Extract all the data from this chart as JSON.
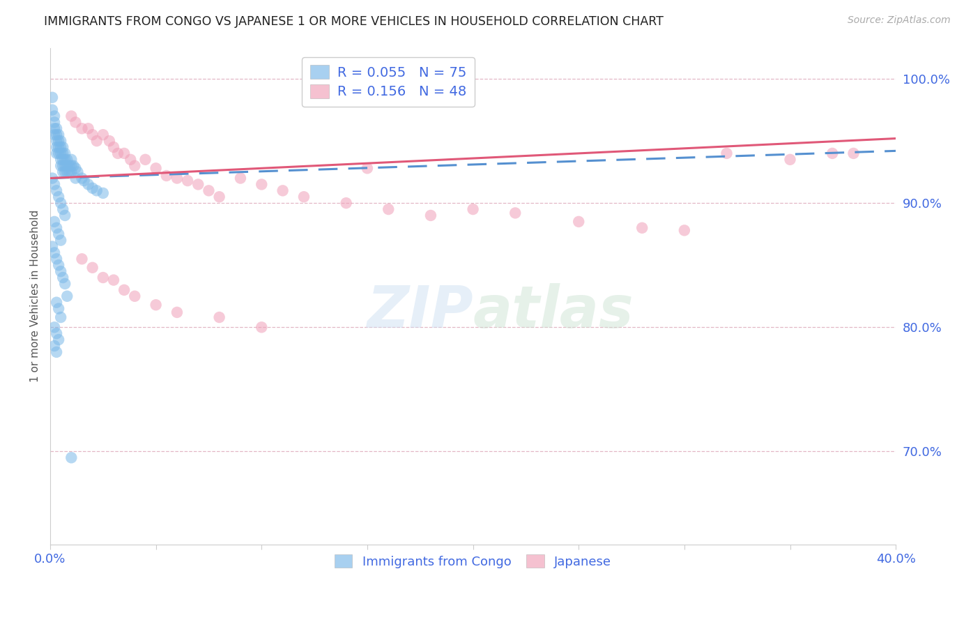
{
  "title": "IMMIGRANTS FROM CONGO VS JAPANESE 1 OR MORE VEHICLES IN HOUSEHOLD CORRELATION CHART",
  "source": "Source: ZipAtlas.com",
  "ylabel": "1 or more Vehicles in Household",
  "xlim": [
    0.0,
    0.4
  ],
  "ylim": [
    0.625,
    1.025
  ],
  "xtick_positions": [
    0.0,
    0.05,
    0.1,
    0.15,
    0.2,
    0.25,
    0.3,
    0.35,
    0.4
  ],
  "xtick_labels": [
    "0.0%",
    "",
    "",
    "",
    "",
    "",
    "",
    "",
    "40.0%"
  ],
  "ytick_vals": [
    0.7,
    0.8,
    0.9,
    1.0
  ],
  "ytick_labels": [
    "70.0%",
    "80.0%",
    "90.0%",
    "100.0%"
  ],
  "legend_line1": "R = 0.055   N = 75",
  "legend_line2": "R = 0.156   N = 48",
  "legend_label1": "Immigrants from Congo",
  "legend_label2": "Japanese",
  "color_blue": "#7ab8e8",
  "color_pink": "#f0a0b8",
  "color_blue_line": "#5590d0",
  "color_pink_line": "#e05878",
  "color_axis_text": "#4169e1",
  "color_title": "#222222",
  "color_grid": "#e0b0c0",
  "congo_x": [
    0.001,
    0.001,
    0.002,
    0.002,
    0.002,
    0.002,
    0.003,
    0.003,
    0.003,
    0.003,
    0.003,
    0.004,
    0.004,
    0.004,
    0.004,
    0.005,
    0.005,
    0.005,
    0.005,
    0.005,
    0.006,
    0.006,
    0.006,
    0.006,
    0.006,
    0.007,
    0.007,
    0.007,
    0.007,
    0.008,
    0.008,
    0.008,
    0.009,
    0.009,
    0.01,
    0.01,
    0.01,
    0.011,
    0.012,
    0.012,
    0.013,
    0.015,
    0.016,
    0.018,
    0.02,
    0.022,
    0.025,
    0.001,
    0.002,
    0.003,
    0.004,
    0.005,
    0.006,
    0.007,
    0.002,
    0.003,
    0.004,
    0.005,
    0.001,
    0.002,
    0.003,
    0.004,
    0.005,
    0.006,
    0.007,
    0.008,
    0.003,
    0.004,
    0.005,
    0.002,
    0.003,
    0.004,
    0.002,
    0.003,
    0.01
  ],
  "congo_y": [
    0.985,
    0.975,
    0.97,
    0.965,
    0.96,
    0.955,
    0.96,
    0.955,
    0.95,
    0.945,
    0.94,
    0.955,
    0.95,
    0.945,
    0.94,
    0.95,
    0.945,
    0.94,
    0.935,
    0.93,
    0.945,
    0.94,
    0.935,
    0.93,
    0.925,
    0.94,
    0.935,
    0.93,
    0.925,
    0.935,
    0.93,
    0.925,
    0.93,
    0.925,
    0.935,
    0.93,
    0.925,
    0.93,
    0.928,
    0.92,
    0.925,
    0.92,
    0.918,
    0.915,
    0.912,
    0.91,
    0.908,
    0.92,
    0.915,
    0.91,
    0.905,
    0.9,
    0.895,
    0.89,
    0.885,
    0.88,
    0.875,
    0.87,
    0.865,
    0.86,
    0.855,
    0.85,
    0.845,
    0.84,
    0.835,
    0.825,
    0.82,
    0.815,
    0.808,
    0.8,
    0.795,
    0.79,
    0.785,
    0.78,
    0.695
  ],
  "japanese_x": [
    0.01,
    0.012,
    0.015,
    0.018,
    0.02,
    0.022,
    0.025,
    0.028,
    0.03,
    0.032,
    0.035,
    0.038,
    0.04,
    0.045,
    0.05,
    0.055,
    0.06,
    0.065,
    0.07,
    0.075,
    0.08,
    0.09,
    0.1,
    0.11,
    0.12,
    0.14,
    0.15,
    0.16,
    0.18,
    0.2,
    0.22,
    0.25,
    0.28,
    0.3,
    0.32,
    0.35,
    0.37,
    0.38,
    0.015,
    0.02,
    0.025,
    0.03,
    0.035,
    0.04,
    0.05,
    0.06,
    0.08,
    0.1
  ],
  "japanese_y": [
    0.97,
    0.965,
    0.96,
    0.96,
    0.955,
    0.95,
    0.955,
    0.95,
    0.945,
    0.94,
    0.94,
    0.935,
    0.93,
    0.935,
    0.928,
    0.922,
    0.92,
    0.918,
    0.915,
    0.91,
    0.905,
    0.92,
    0.915,
    0.91,
    0.905,
    0.9,
    0.928,
    0.895,
    0.89,
    0.895,
    0.892,
    0.885,
    0.88,
    0.878,
    0.94,
    0.935,
    0.94,
    0.94,
    0.855,
    0.848,
    0.84,
    0.838,
    0.83,
    0.825,
    0.818,
    0.812,
    0.808,
    0.8
  ],
  "trendline_x": [
    0.0,
    0.4
  ],
  "congo_trend_y": [
    0.92,
    0.942
  ],
  "japanese_trend_y": [
    0.92,
    0.952
  ]
}
